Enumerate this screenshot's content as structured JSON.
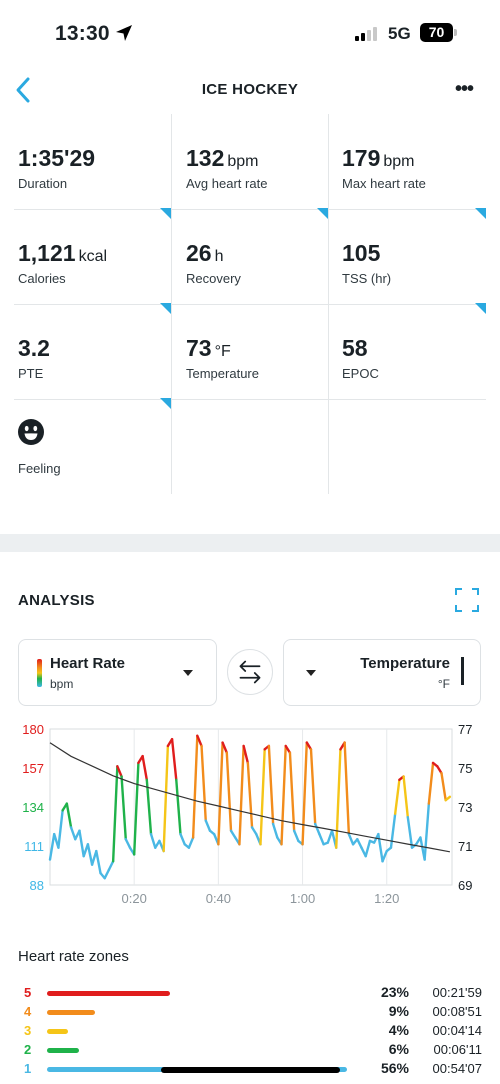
{
  "status_bar": {
    "time": "13:30",
    "network": "5G",
    "battery": "70"
  },
  "header": {
    "title": "ICE HOCKEY"
  },
  "stats": [
    {
      "value": "1:35'29",
      "unit": "",
      "label": "Duration"
    },
    {
      "value": "132",
      "unit": "bpm",
      "label": "Avg heart rate"
    },
    {
      "value": "179",
      "unit": "bpm",
      "label": "Max heart rate"
    },
    {
      "value": "1,121",
      "unit": "kcal",
      "label": "Calories"
    },
    {
      "value": "26",
      "unit": "h",
      "label": "Recovery"
    },
    {
      "value": "105",
      "unit": "",
      "label": "TSS (hr)"
    },
    {
      "value": "3.2",
      "unit": "",
      "label": "PTE"
    },
    {
      "value": "73",
      "unit": "°F",
      "label": "Temperature"
    },
    {
      "value": "58",
      "unit": "",
      "label": "EPOC"
    },
    {
      "value": "",
      "unit": "",
      "label": "Feeling",
      "icon": "smiley-face-icon"
    }
  ],
  "analysis": {
    "title": "ANALYSIS",
    "left_selector": {
      "name": "Heart Rate",
      "unit": "bpm"
    },
    "right_selector": {
      "name": "Temperature",
      "unit": "°F"
    }
  },
  "chart_data": {
    "type": "line",
    "x_tick_labels": [
      "0:20",
      "0:40",
      "1:00",
      "1:20"
    ],
    "x_ticks_minutes": [
      20,
      40,
      60,
      80
    ],
    "x_range_minutes": [
      0,
      95.5
    ],
    "left_axis": {
      "label": "",
      "ticks": [
        "180",
        "157",
        "134",
        "111",
        "88"
      ],
      "range": [
        88,
        180
      ],
      "tick_colors": [
        "#e01d1d",
        "#e01d1d",
        "#1fb24a",
        "#3fb7e6",
        "#3fb7e6"
      ]
    },
    "right_axis": {
      "label": "",
      "ticks": [
        "77",
        "75",
        "73",
        "71",
        "69"
      ],
      "range": [
        69,
        77
      ]
    },
    "zone_colors": {
      "z1": "#4ab8e4",
      "z2": "#1fb24a",
      "z3": "#f5c518",
      "z4": "#f28c1c",
      "z5": "#e01d1d"
    },
    "series": [
      {
        "name": "Heart Rate",
        "axis": "left",
        "x_minutes": [
          0,
          1,
          2,
          3,
          4,
          5,
          6,
          7,
          8,
          9,
          10,
          11,
          12,
          13,
          14,
          15,
          16,
          17,
          18,
          19,
          20,
          21,
          22,
          23,
          24,
          25,
          26,
          27,
          28,
          29,
          30,
          31,
          32,
          33,
          34,
          35,
          36,
          37,
          38,
          39,
          40,
          41,
          42,
          43,
          44,
          45,
          46,
          47,
          48,
          49,
          50,
          51,
          52,
          53,
          54,
          55,
          56,
          57,
          58,
          59,
          60,
          61,
          62,
          63,
          64,
          65,
          66,
          67,
          68,
          69,
          70,
          71,
          72,
          73,
          74,
          75,
          76,
          77,
          78,
          79,
          80,
          81,
          82,
          83,
          84,
          85,
          86,
          87,
          88,
          89,
          90,
          91,
          92,
          93,
          94,
          95
        ],
        "values": [
          103,
          118,
          110,
          132,
          136,
          122,
          115,
          120,
          105,
          112,
          100,
          108,
          95,
          92,
          97,
          102,
          158,
          152,
          115,
          110,
          106,
          160,
          164,
          150,
          118,
          110,
          114,
          108,
          170,
          174,
          150,
          118,
          112,
          110,
          116,
          176,
          170,
          126,
          120,
          118,
          112,
          172,
          166,
          120,
          116,
          112,
          170,
          160,
          122,
          118,
          112,
          168,
          170,
          124,
          116,
          112,
          170,
          166,
          120,
          114,
          112,
          172,
          168,
          124,
          118,
          112,
          113,
          120,
          110,
          168,
          172,
          118,
          112,
          115,
          110,
          105,
          114,
          113,
          118,
          102,
          108,
          110,
          130,
          150,
          152,
          128,
          110,
          112,
          116,
          103,
          136,
          160,
          158,
          154,
          138,
          140
        ]
      },
      {
        "name": "Temperature",
        "axis": "right",
        "x_minutes": [
          0,
          5,
          10,
          15,
          20,
          25,
          30,
          35,
          40,
          45,
          50,
          55,
          60,
          65,
          70,
          75,
          80,
          85,
          90,
          95
        ],
        "values": [
          76.3,
          75.6,
          75.1,
          74.6,
          74.2,
          73.9,
          73.6,
          73.3,
          73.05,
          72.8,
          72.55,
          72.3,
          72.1,
          71.9,
          71.7,
          71.5,
          71.3,
          71.1,
          70.9,
          70.7
        ]
      }
    ]
  },
  "zones": {
    "title": "Heart rate zones",
    "rows": [
      {
        "zone": "5",
        "color": "#e01d1d",
        "percent": "23%",
        "fraction": 0.23,
        "duration": "00:21'59"
      },
      {
        "zone": "4",
        "color": "#f28c1c",
        "percent": "9%",
        "fraction": 0.09,
        "duration": "00:08'51"
      },
      {
        "zone": "3",
        "color": "#f5c518",
        "percent": "4%",
        "fraction": 0.04,
        "duration": "00:04'14"
      },
      {
        "zone": "2",
        "color": "#1fb24a",
        "percent": "6%",
        "fraction": 0.06,
        "duration": "00:06'11"
      },
      {
        "zone": "1",
        "color": "#4ab8e4",
        "percent": "56%",
        "fraction": 0.56,
        "duration": "00:54'07"
      }
    ]
  }
}
